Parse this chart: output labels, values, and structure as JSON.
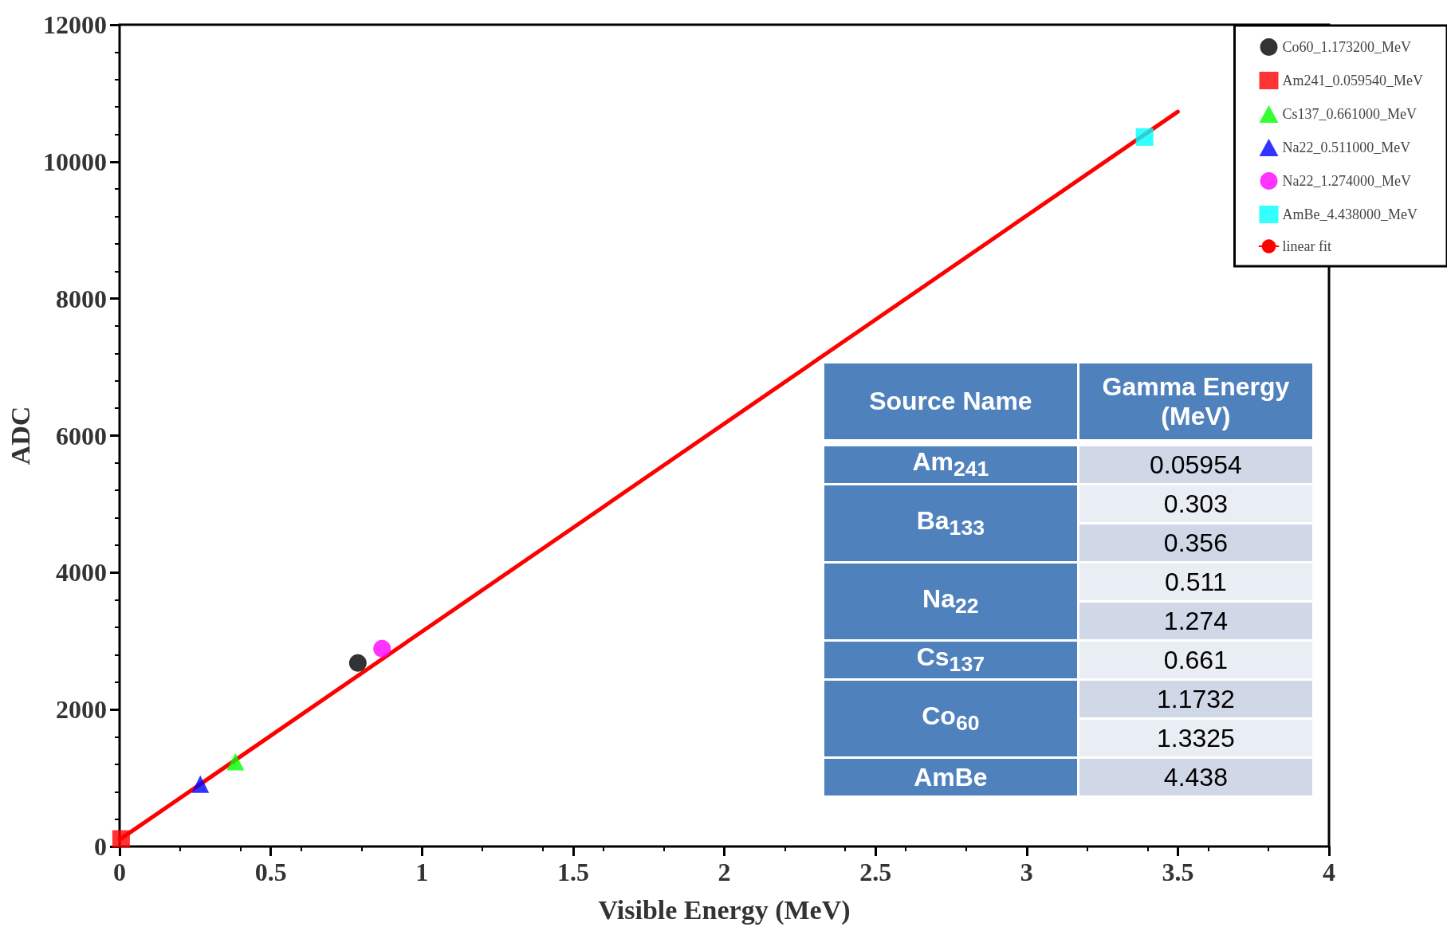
{
  "chart_data": [
    {
      "type": "scatter",
      "xlabel": "Visible Energy (MeV)",
      "ylabel": "ADC",
      "xlim": [
        0,
        4
      ],
      "xticks": [
        0,
        0.5,
        1,
        1.5,
        2,
        2.5,
        3,
        3.5,
        4
      ],
      "ylim": [
        0,
        12000
      ],
      "yticks": [
        0,
        2000,
        4000,
        6000,
        8000,
        10000,
        12000
      ],
      "grid": false,
      "legend": "top right",
      "series": [
        {
          "name": "Co60_1.173200_MeV",
          "color": "#000000",
          "marker": "circle",
          "x": [
            0.788
          ],
          "values": [
            2680
          ]
        },
        {
          "name": "Am241_0.059540_MeV",
          "color": "#ff0000",
          "marker": "square",
          "x": [
            0.005
          ],
          "values": [
            110
          ]
        },
        {
          "name": "Cs137_0.661000_MeV",
          "color": "#00ff00",
          "marker": "triangle",
          "x": [
            0.383
          ],
          "values": [
            1240
          ]
        },
        {
          "name": "Na22_0.511000_MeV",
          "color": "#0000ff",
          "marker": "triangle",
          "x": [
            0.267
          ],
          "values": [
            910
          ]
        },
        {
          "name": "Na22_1.274000_MeV",
          "color": "#ff00ff",
          "marker": "circle",
          "x": [
            0.868
          ],
          "values": [
            2890
          ]
        },
        {
          "name": "AmBe_4.438000_MeV",
          "color": "#00ffff",
          "marker": "square",
          "x": [
            3.39
          ],
          "values": [
            10360
          ]
        },
        {
          "name": "linear fit",
          "type": "line",
          "color": "#ff0000",
          "marker": "none",
          "line_style": "solid",
          "x": [
            0,
            3.5
          ],
          "values": [
            100,
            10730
          ]
        }
      ]
    },
    {
      "type": "other",
      "categories": [
        "Source Name",
        "Gamma Energy (MeV)"
      ],
      "y_categories": [
        "Am$_{241}$",
        "Ba$_{133}$",
        "Na$_{22}$",
        "Cs$_{137}$",
        "Co$_{60}$",
        "AmBe"
      ],
      "cell_labels": [
        [
          "0.05954"
        ],
        [
          "0.303",
          "0.356"
        ],
        [
          "0.511",
          "1.274"
        ],
        [
          "0.661"
        ],
        [
          "1.1732",
          "1.3325"
        ],
        [
          "4.438"
        ]
      ]
    }
  ]
}
